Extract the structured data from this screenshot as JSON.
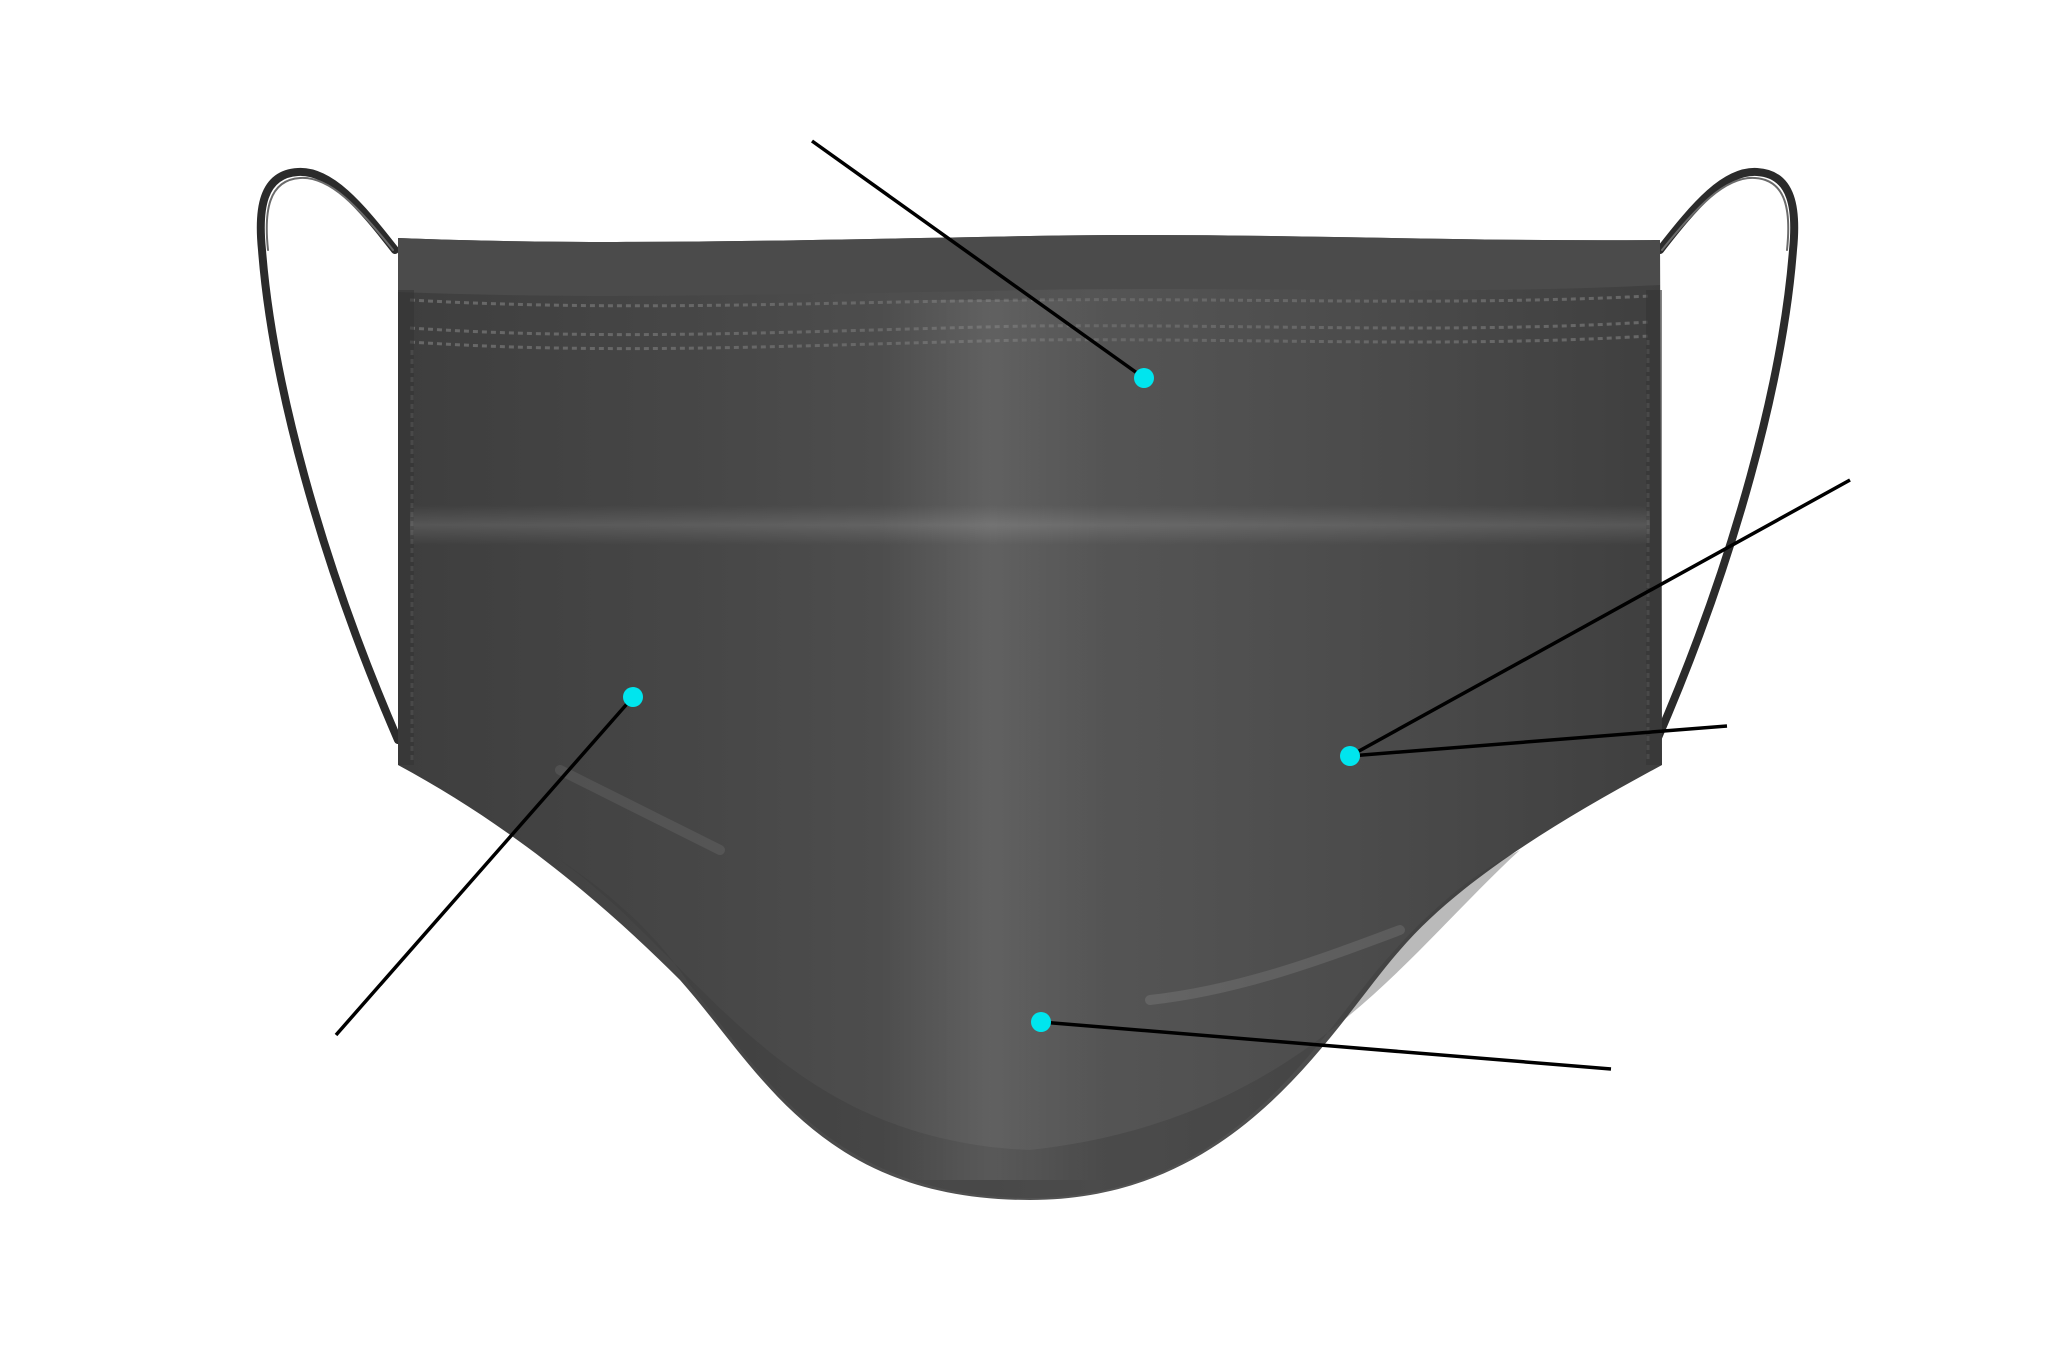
{
  "diagram": {
    "subject": "face-mask-illustration",
    "colors": {
      "background": "#ffffff",
      "mask_body": "#4a4a4a",
      "mask_body_light": "#5c5c5c",
      "mask_body_dark": "#3c3c3c",
      "ear_loop": "#2b2b2b",
      "stitching": "#6a6a6a",
      "marker": "#00e5ee",
      "leader_line": "#000000"
    },
    "callouts": [
      {
        "id": "nose-wire-callout",
        "label": ""
      },
      {
        "id": "outer-layer-callout",
        "label": ""
      },
      {
        "id": "ear-loop-callout",
        "label": ""
      },
      {
        "id": "side-seam-callout",
        "label": ""
      },
      {
        "id": "chin-pleat-callout",
        "label": ""
      }
    ]
  }
}
